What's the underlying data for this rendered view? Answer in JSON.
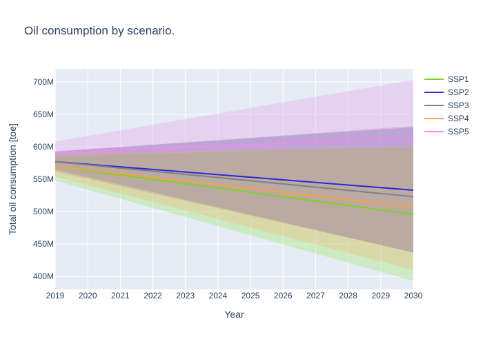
{
  "chart_data": {
    "type": "area",
    "title": "Oil consumption by scenario.",
    "xlabel": "Year",
    "ylabel": "Total oil consumption [toe]",
    "x": [
      2019,
      2030
    ],
    "xticks": [
      "2019",
      "2020",
      "2021",
      "2022",
      "2023",
      "2024",
      "2025",
      "2026",
      "2027",
      "2028",
      "2029",
      "2030"
    ],
    "xlim": [
      2019,
      2030
    ],
    "ylim": [
      380000000,
      720000000
    ],
    "yticks": [
      400000000,
      450000000,
      500000000,
      550000000,
      600000000,
      650000000,
      700000000
    ],
    "ytick_labels": [
      "400M",
      "450M",
      "500M",
      "550M",
      "600M",
      "650M",
      "700M"
    ],
    "grid": true,
    "legend_position": "right",
    "series": [
      {
        "name": "SSP1",
        "color": "#7fd320",
        "fill": "rgba(154,230,100,0.35)",
        "values": [
          570000000,
          496000000
        ],
        "lower": [
          548000000,
          393000000
        ],
        "upper": [
          590000000,
          600000000
        ]
      },
      {
        "name": "SSP2",
        "color": "#2b28d8",
        "fill": "rgba(120,100,230,0.40)",
        "values": [
          577000000,
          533000000
        ],
        "lower": [
          565000000,
          437000000
        ],
        "upper": [
          593000000,
          630000000
        ]
      },
      {
        "name": "SSP3",
        "color": "#808080",
        "fill": "rgba(140,140,140,0.35)",
        "values": [
          577000000,
          523000000
        ],
        "lower": [
          562000000,
          437000000
        ],
        "upper": [
          592000000,
          632000000
        ]
      },
      {
        "name": "SSP4",
        "color": "#f4a14f",
        "fill": "rgba(250,180,110,0.30)",
        "values": [
          570000000,
          507000000
        ],
        "lower": [
          554000000,
          410000000
        ],
        "upper": [
          590000000,
          600000000
        ]
      },
      {
        "name": "SSP5",
        "color": "#ee8aee",
        "fill": "rgba(230,160,230,0.35)",
        "values": [
          590000000,
          613000000
        ],
        "lower": [
          585000000,
          600000000
        ],
        "upper": [
          608000000,
          703000000
        ]
      }
    ]
  }
}
